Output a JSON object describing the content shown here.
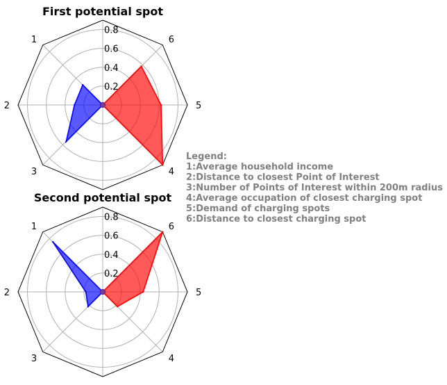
{
  "chart_data": [
    {
      "type": "radar",
      "title": "First potential spot",
      "axes": [
        "1",
        "2",
        "3",
        "4",
        "5",
        "6"
      ],
      "rlim": [
        0,
        0.9
      ],
      "r_ticks": [
        "0.2",
        "0.4",
        "0.6",
        "0.8"
      ],
      "grid": true,
      "series": [
        {
          "color": "#0000ff",
          "values": [
            0.3,
            0.3,
            0.55,
            0.0,
            0.0,
            0.0
          ]
        },
        {
          "color": "#ff0000",
          "values": [
            0.0,
            0.0,
            0.0,
            0.9,
            0.62,
            0.58
          ]
        }
      ]
    },
    {
      "type": "radar",
      "title": "Second potential spot",
      "axes": [
        "1",
        "2",
        "3",
        "4",
        "5",
        "6"
      ],
      "rlim": [
        0,
        0.9
      ],
      "r_ticks": [
        "0.2",
        "0.4",
        "0.6",
        "0.8"
      ],
      "grid": true,
      "series": [
        {
          "color": "#0000ff",
          "values": [
            0.75,
            0.18,
            0.22,
            0.0,
            0.0,
            0.0
          ]
        },
        {
          "color": "#ff0000",
          "values": [
            0.0,
            0.0,
            0.0,
            0.22,
            0.43,
            0.9
          ]
        }
      ]
    }
  ],
  "legend": {
    "heading": "Legend:",
    "lines": [
      "1:Average household income",
      "2:Distance to closest Point of Interest",
      "3:Number of Points of Interest within 200m radius",
      "4:Average occupation of closest charging spot",
      "5:Demand of charging spots",
      "6:Distance to closest charging spot"
    ]
  }
}
